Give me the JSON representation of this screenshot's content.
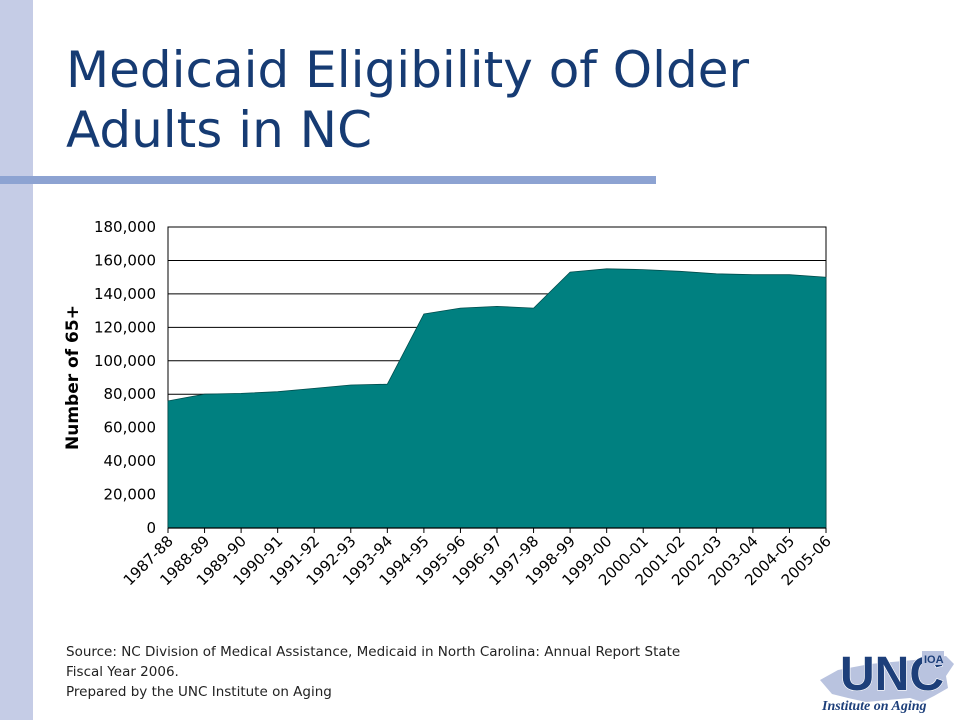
{
  "slide": {
    "title_line1": "Medicaid Eligibility of Older",
    "title_line2": "Adults in NC",
    "accent_color": "#163b73",
    "band_color": "#c5cce6",
    "rule_color": "#8da3d2"
  },
  "chart_data": {
    "type": "area",
    "title": "",
    "xlabel": "",
    "ylabel": "Number of 65+",
    "ylim": [
      0,
      180000
    ],
    "yticks": [
      0,
      20000,
      40000,
      60000,
      80000,
      100000,
      120000,
      140000,
      160000,
      180000
    ],
    "ytick_labels": [
      "0",
      "20,000",
      "40,000",
      "60,000",
      "80,000",
      "100,000",
      "120,000",
      "140,000",
      "160,000",
      "180,000"
    ],
    "grid": true,
    "legend": "none",
    "fill_color": "#008080",
    "categories": [
      "1987-88",
      "1988-89",
      "1989-90",
      "1990-91",
      "1991-92",
      "1992-93",
      "1993-94",
      "1994-95",
      "1995-96",
      "1996-97",
      "1997-98",
      "1998-99",
      "1999-00",
      "2000-01",
      "2001-02",
      "2002-03",
      "2003-04",
      "2004-05",
      "2005-06"
    ],
    "series": [
      {
        "values": [
          76000,
          80000,
          80500,
          81500,
          83500,
          85500,
          86000,
          128000,
          131500,
          132500,
          131500,
          153000,
          155000,
          154500,
          153500,
          152000,
          151500,
          151500,
          150000
        ]
      }
    ]
  },
  "source": {
    "line1": "Source: NC Division of Medical Assistance, Medicaid in North Carolina: Annual Report State",
    "line2": "Fiscal Year 2006.",
    "line3": "Prepared by the UNC Institute on Aging"
  },
  "logo": {
    "main_text": "UNC",
    "badge_text": "IOA",
    "sub_text": "Institute on Aging",
    "primary_color": "#1d3f7a",
    "state_color": "#b9c3df"
  }
}
